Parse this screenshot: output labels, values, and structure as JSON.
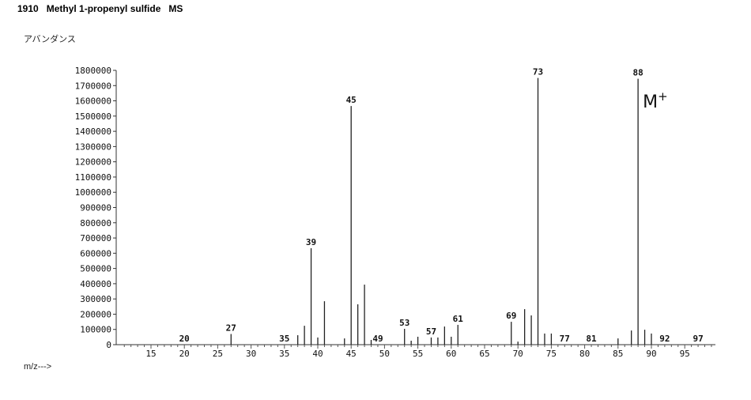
{
  "title": "1910   Methyl 1-propenyl sulfide   MS",
  "chart_data": {
    "type": "bar",
    "title": "1910   Methyl 1-propenyl sulfide   MS",
    "ylabel": "アバンダンス",
    "xlabel": "m/z--->",
    "xlim": [
      10,
      100
    ],
    "ylim": [
      0,
      1800000
    ],
    "xticks": [
      15,
      20,
      25,
      30,
      35,
      40,
      45,
      50,
      55,
      60,
      65,
      70,
      75,
      80,
      85,
      90,
      95
    ],
    "yticks": [
      0,
      100000,
      200000,
      300000,
      400000,
      500000,
      600000,
      700000,
      800000,
      900000,
      1000000,
      1100000,
      1200000,
      1300000,
      1400000,
      1500000,
      1600000,
      1700000,
      1800000
    ],
    "grid": false,
    "peaks": [
      {
        "mz": 27,
        "abundance": 70000
      },
      {
        "mz": 37,
        "abundance": 62000
      },
      {
        "mz": 38,
        "abundance": 124000
      },
      {
        "mz": 39,
        "abundance": 633000
      },
      {
        "mz": 40,
        "abundance": 47000
      },
      {
        "mz": 41,
        "abundance": 285000
      },
      {
        "mz": 44,
        "abundance": 41000
      },
      {
        "mz": 45,
        "abundance": 1566000
      },
      {
        "mz": 46,
        "abundance": 265000
      },
      {
        "mz": 47,
        "abundance": 394000
      },
      {
        "mz": 48,
        "abundance": 31000
      },
      {
        "mz": 53,
        "abundance": 104000
      },
      {
        "mz": 54,
        "abundance": 26000
      },
      {
        "mz": 55,
        "abundance": 52000
      },
      {
        "mz": 57,
        "abundance": 47000
      },
      {
        "mz": 58,
        "abundance": 47000
      },
      {
        "mz": 59,
        "abundance": 119000
      },
      {
        "mz": 60,
        "abundance": 52000
      },
      {
        "mz": 61,
        "abundance": 130000
      },
      {
        "mz": 69,
        "abundance": 150000
      },
      {
        "mz": 70,
        "abundance": 20000
      },
      {
        "mz": 71,
        "abundance": 233000
      },
      {
        "mz": 72,
        "abundance": 192000
      },
      {
        "mz": 73,
        "abundance": 1750000
      },
      {
        "mz": 74,
        "abundance": 73000
      },
      {
        "mz": 75,
        "abundance": 73000
      },
      {
        "mz": 85,
        "abundance": 41000
      },
      {
        "mz": 87,
        "abundance": 93000
      },
      {
        "mz": 88,
        "abundance": 1745000
      },
      {
        "mz": 89,
        "abundance": 98000
      },
      {
        "mz": 90,
        "abundance": 73000
      }
    ],
    "peak_labels": [
      {
        "mz": 20,
        "text": "20",
        "abundance": 0
      },
      {
        "mz": 27,
        "text": "27",
        "abundance": 70000
      },
      {
        "mz": 35,
        "text": "35",
        "abundance": 0
      },
      {
        "mz": 39,
        "text": "39",
        "abundance": 633000
      },
      {
        "mz": 45,
        "text": "45",
        "abundance": 1566000
      },
      {
        "mz": 49,
        "text": "49",
        "abundance": 0
      },
      {
        "mz": 53,
        "text": "53",
        "abundance": 104000
      },
      {
        "mz": 57,
        "text": "57",
        "abundance": 47000
      },
      {
        "mz": 61,
        "text": "61",
        "abundance": 130000
      },
      {
        "mz": 69,
        "text": "69",
        "abundance": 150000
      },
      {
        "mz": 73,
        "text": "73",
        "abundance": 1750000
      },
      {
        "mz": 77,
        "text": "77",
        "abundance": 0
      },
      {
        "mz": 81,
        "text": "81",
        "abundance": 0
      },
      {
        "mz": 88,
        "text": "88",
        "abundance": 1745000
      },
      {
        "mz": 92,
        "text": "92",
        "abundance": 0
      },
      {
        "mz": 97,
        "text": "97",
        "abundance": 0
      }
    ],
    "annotations": [
      {
        "text": "M+",
        "mz": 88
      }
    ]
  }
}
